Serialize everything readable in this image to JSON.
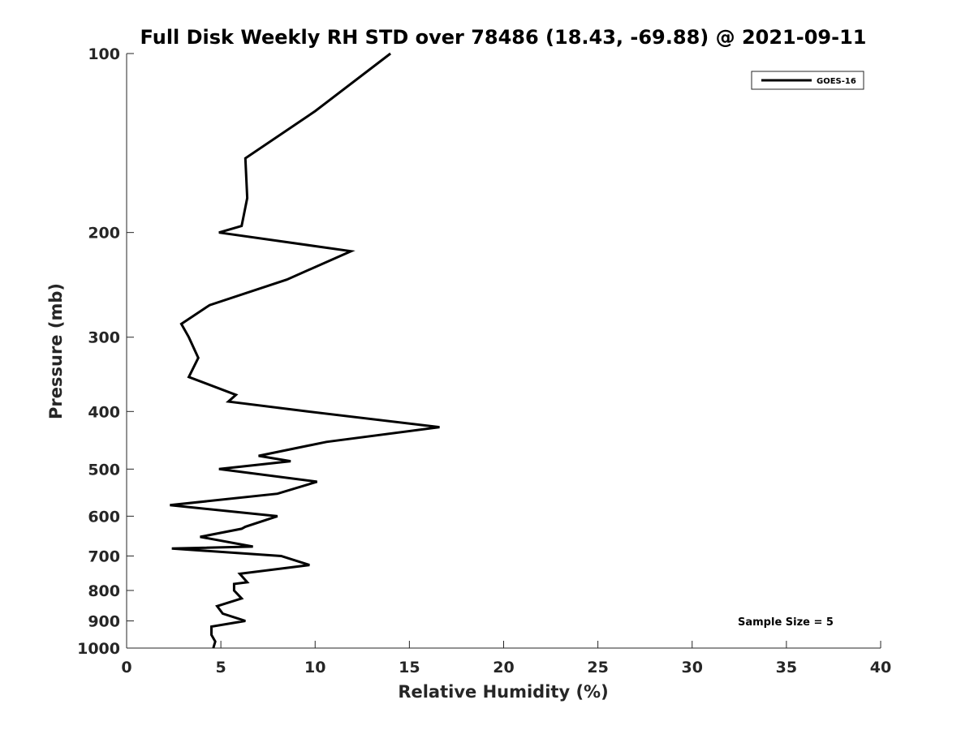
{
  "chart_data": {
    "type": "line",
    "title": "Full Disk Weekly RH STD over 78486 (18.43, -69.88) @ 2021-09-11",
    "xlabel": "Relative Humidity (%)",
    "ylabel": "Pressure (mb)",
    "xlim": [
      0,
      40
    ],
    "ylim": [
      100,
      1000
    ],
    "y_scale": "log",
    "y_reversed": true,
    "x_ticks": [
      0,
      5,
      10,
      15,
      20,
      25,
      30,
      35,
      40
    ],
    "y_ticks": [
      100,
      200,
      300,
      400,
      500,
      600,
      700,
      800,
      900,
      1000
    ],
    "grid": false,
    "legend_position": "top-right",
    "series": [
      {
        "name": "GOES-16",
        "color": "#000000",
        "points": [
          [
            14.0,
            100
          ],
          [
            10.0,
            125
          ],
          [
            6.3,
            150
          ],
          [
            6.4,
            175
          ],
          [
            6.1,
            195
          ],
          [
            4.9,
            200
          ],
          [
            11.9,
            215
          ],
          [
            8.5,
            240
          ],
          [
            4.4,
            265
          ],
          [
            2.9,
            285
          ],
          [
            3.3,
            300
          ],
          [
            3.8,
            325
          ],
          [
            3.3,
            350
          ],
          [
            5.8,
            375
          ],
          [
            5.4,
            385
          ],
          [
            9.6,
            400
          ],
          [
            16.6,
            425
          ],
          [
            10.6,
            450
          ],
          [
            7.0,
            475
          ],
          [
            8.7,
            485
          ],
          [
            4.9,
            500
          ],
          [
            10.1,
            525
          ],
          [
            8.0,
            550
          ],
          [
            2.3,
            575
          ],
          [
            8.0,
            600
          ],
          [
            6.3,
            625
          ],
          [
            6.1,
            630
          ],
          [
            3.9,
            650
          ],
          [
            6.7,
            675
          ],
          [
            2.4,
            680
          ],
          [
            8.2,
            700
          ],
          [
            9.7,
            725
          ],
          [
            6.0,
            750
          ],
          [
            6.4,
            775
          ],
          [
            5.7,
            780
          ],
          [
            5.7,
            800
          ],
          [
            6.1,
            825
          ],
          [
            4.8,
            850
          ],
          [
            5.1,
            875
          ],
          [
            6.3,
            900
          ],
          [
            4.5,
            920
          ],
          [
            4.5,
            950
          ],
          [
            4.7,
            975
          ],
          [
            4.6,
            1000
          ]
        ]
      }
    ],
    "annotation": "Sample Size = 5"
  }
}
